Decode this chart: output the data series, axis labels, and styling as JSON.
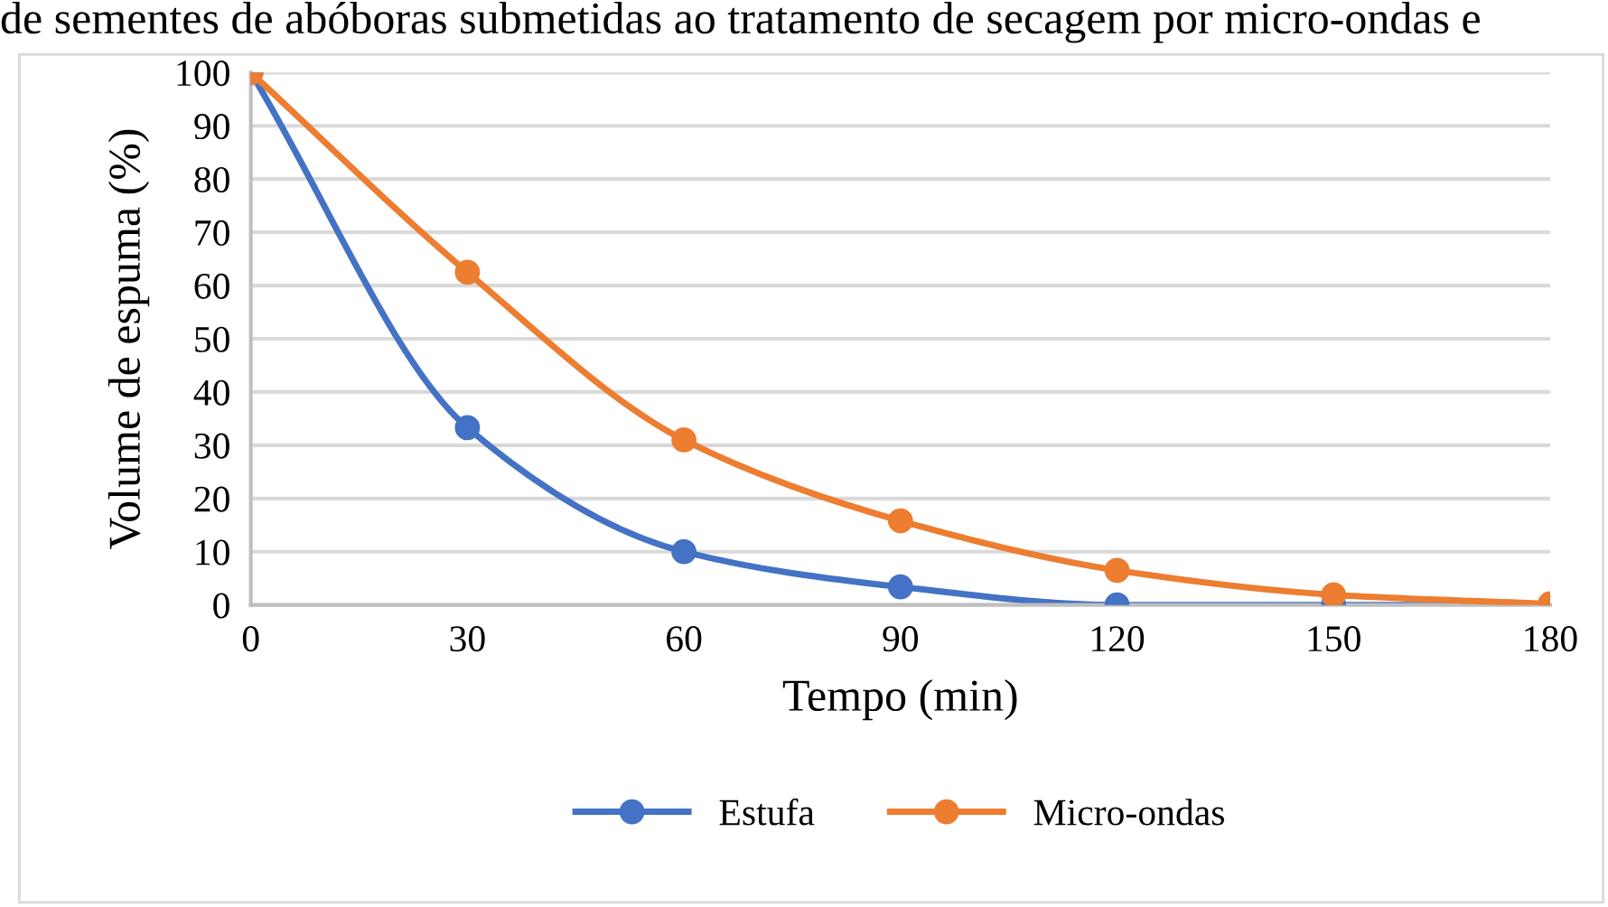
{
  "chart_data": {
    "type": "line",
    "title": "de sementes de abóboras submetidas ao tratamento de secagem por micro-ondas e",
    "xlabel": "Tempo (min)",
    "ylabel": "Volume de espuma (%)",
    "x": [
      0,
      30,
      60,
      90,
      120,
      150,
      180
    ],
    "series": [
      {
        "name": "Estufa",
        "color": "#4472c4",
        "values": [
          100,
          33.3,
          10,
          3.4,
          0,
          0,
          0
        ]
      },
      {
        "name": "Micro-ondas",
        "color": "#ed7d31",
        "values": [
          100,
          62.5,
          31,
          15.8,
          6.5,
          1.9,
          0.2
        ]
      }
    ],
    "xlim": [
      0,
      180
    ],
    "xticks": [
      0,
      30,
      60,
      90,
      120,
      150,
      180
    ],
    "ylim": [
      0,
      100
    ],
    "yticks": [
      0,
      10,
      20,
      30,
      40,
      50,
      60,
      70,
      80,
      90,
      100
    ],
    "grid": "y",
    "legend": "bottom",
    "marker": "circle",
    "line_style": "solid"
  }
}
